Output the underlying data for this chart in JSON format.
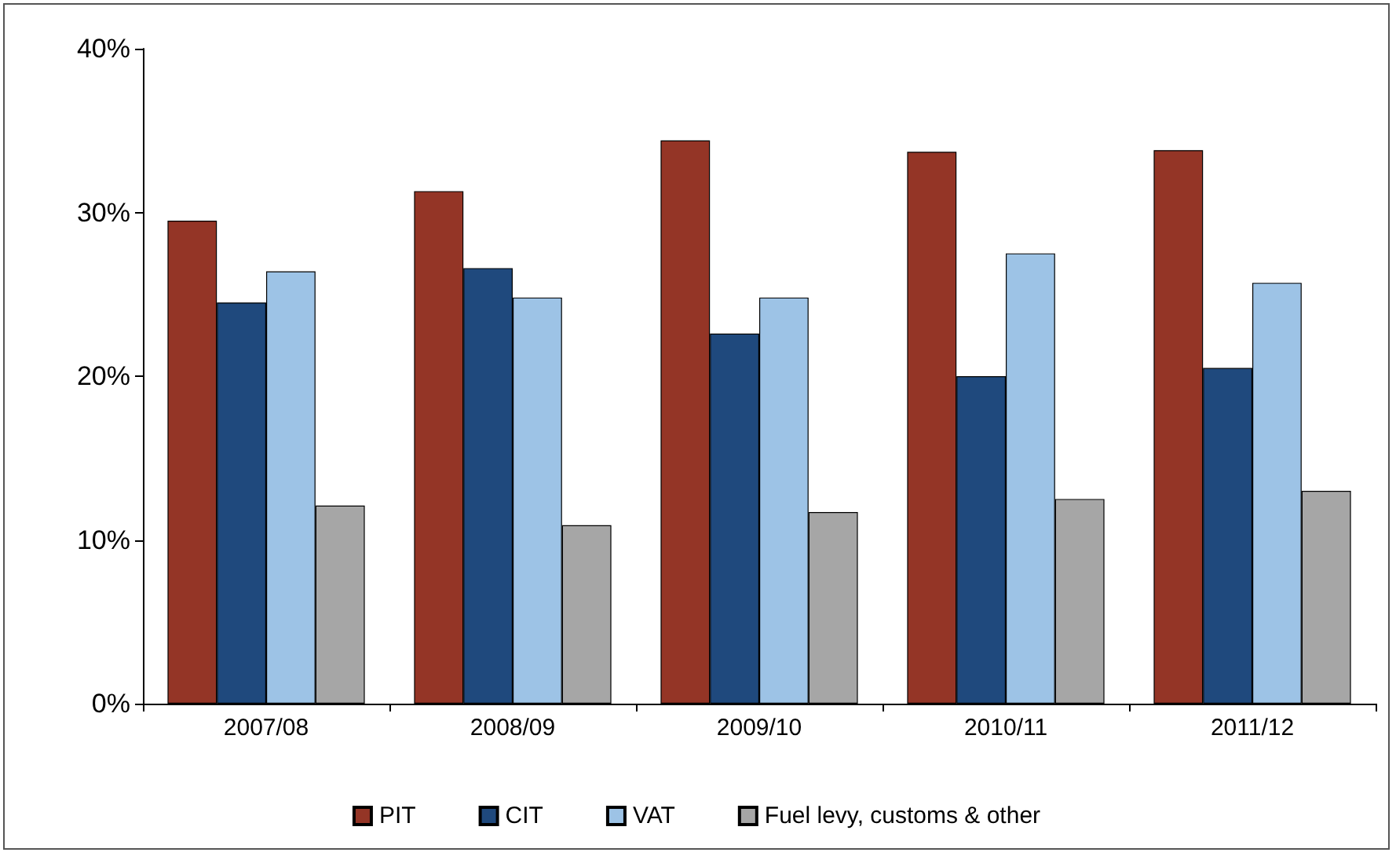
{
  "chart_data": {
    "type": "bar",
    "categories": [
      "2007/08",
      "2008/09",
      "2009/10",
      "2010/11",
      "2011/12"
    ],
    "series": [
      {
        "name": "PIT",
        "color": "#943526",
        "values": [
          29.5,
          31.3,
          34.4,
          33.7,
          33.8
        ]
      },
      {
        "name": "CIT",
        "color": "#1f497d",
        "values": [
          24.5,
          26.6,
          22.6,
          20.0,
          20.5
        ]
      },
      {
        "name": "VAT",
        "color": "#9dc3e6",
        "values": [
          26.4,
          24.8,
          24.8,
          27.5,
          25.7
        ]
      },
      {
        "name": "Fuel levy, customs & other",
        "color": "#a6a6a6",
        "values": [
          12.1,
          10.9,
          11.7,
          12.5,
          13.0
        ]
      }
    ],
    "ylim": [
      0,
      40
    ],
    "yticks": [
      {
        "value": 0,
        "label": "0%"
      },
      {
        "value": 10,
        "label": "10%"
      },
      {
        "value": 20,
        "label": "20%"
      },
      {
        "value": 30,
        "label": "30%"
      },
      {
        "value": 40,
        "label": "40%"
      }
    ],
    "grid": false,
    "legend": "bottom"
  }
}
